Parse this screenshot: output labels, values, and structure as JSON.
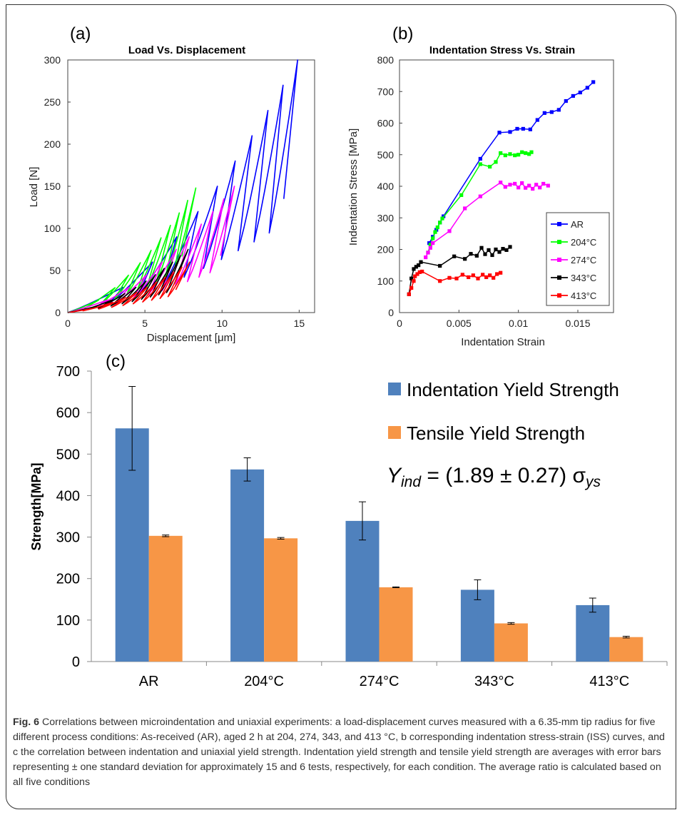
{
  "colors": {
    "blue": "#0000ff",
    "green": "#00ff00",
    "magenta": "#ff00ff",
    "black": "#000000",
    "red": "#ff0000",
    "bar_ind": "#4f81bd",
    "bar_ten": "#f79646"
  },
  "panel_a": {
    "label": "(a)",
    "title": "Load Vs. Displacement",
    "xlabel": "Displacement [μm]",
    "ylabel": "Load [N]",
    "xticks": [
      "0",
      "5",
      "10",
      "15"
    ],
    "yticks": [
      "0",
      "50",
      "100",
      "150",
      "200",
      "250",
      "300"
    ]
  },
  "panel_b": {
    "label": "(b)",
    "title": "Indentation Stress Vs. Strain",
    "xlabel": "Indentation Strain",
    "ylabel": "Indentation Stress [MPa]",
    "xticks": [
      "0",
      "0.005",
      "0.01",
      "0.015"
    ],
    "yticks": [
      "0",
      "100",
      "200",
      "300",
      "400",
      "500",
      "600",
      "700",
      "800"
    ],
    "legend": [
      "AR",
      "204°C",
      "274°C",
      "343°C",
      "413°C"
    ]
  },
  "panel_c": {
    "label": "(c)",
    "ylabel": "Strength[MPa]",
    "yticks": [
      "0",
      "100",
      "200",
      "300",
      "400",
      "500",
      "600",
      "700"
    ],
    "legend_ind": "Indentation Yield Strength",
    "legend_ten": "Tensile Yield Strength",
    "equation": "Y_ind = (1.89 ± 0.27) σ_ys"
  },
  "caption": {
    "lead": "Fig. 6",
    "text": " Correlations between microindentation and uniaxial experiments: a load-displacement curves measured with a 6.35-mm tip radius for five different process conditions: As-received (AR), aged 2 h at 204, 274, 343, and 413 °C, b corresponding indentation stress-strain (ISS) curves, and c the correlation between indentation and uniaxial yield strength. Indentation yield strength and tensile yield strength are averages with error bars representing ± one standard deviation for approximately 15 and 6 tests, respectively, for each condition. The average ratio is calculated based on all five conditions"
  },
  "chart_data": [
    {
      "type": "line",
      "title": "Load Vs. Displacement",
      "xlabel": "Displacement [μm]",
      "ylabel": "Load [N]",
      "xlim": [
        0,
        16
      ],
      "ylim": [
        0,
        300
      ],
      "series": [
        {
          "name": "AR",
          "max_load": 300,
          "max_disp": 14.9,
          "cycles": 10
        },
        {
          "name": "204°C",
          "max_load": 148,
          "max_disp": 8.3,
          "cycles": 10
        },
        {
          "name": "274°C",
          "max_load": 150,
          "max_disp": 10.8,
          "cycles": 10
        },
        {
          "name": "343°C",
          "max_load": 75,
          "max_disp": 7.8,
          "cycles": 10
        },
        {
          "name": "413°C",
          "max_load": 60,
          "max_disp": 7.9,
          "cycles": 10
        }
      ]
    },
    {
      "type": "line",
      "title": "Indentation Stress Vs. Strain",
      "xlabel": "Indentation Strain",
      "ylabel": "Indentation Stress [MPa]",
      "xlim": [
        0,
        0.018
      ],
      "ylim": [
        0,
        800
      ],
      "legend_position": "bottom-right",
      "series": [
        {
          "name": "AR",
          "x": [
            0.0025,
            0.0028,
            0.0031,
            0.0034,
            0.0037,
            0.0068,
            0.0084,
            0.0093,
            0.0099,
            0.0104,
            0.011,
            0.0116,
            0.0122,
            0.0128,
            0.0134,
            0.014,
            0.0146,
            0.0152,
            0.0158,
            0.0163
          ],
          "y": [
            220,
            240,
            262,
            285,
            305,
            487,
            570,
            572,
            582,
            582,
            580,
            610,
            632,
            635,
            642,
            670,
            686,
            697,
            712,
            730
          ]
        },
        {
          "name": "204°C",
          "x": [
            0.0024,
            0.0026,
            0.0028,
            0.003,
            0.0032,
            0.0034,
            0.0036,
            0.0052,
            0.0068,
            0.0076,
            0.0081,
            0.0085,
            0.0089,
            0.0093,
            0.0097,
            0.01,
            0.0103,
            0.0106,
            0.0109,
            0.0111
          ],
          "y": [
            190,
            215,
            235,
            255,
            270,
            285,
            298,
            372,
            470,
            462,
            477,
            505,
            498,
            502,
            498,
            500,
            508,
            505,
            502,
            508
          ]
        },
        {
          "name": "274°C",
          "x": [
            0.0022,
            0.0024,
            0.0026,
            0.0028,
            0.0042,
            0.0055,
            0.0068,
            0.0085,
            0.0089,
            0.0093,
            0.0097,
            0.01,
            0.0103,
            0.0106,
            0.0109,
            0.0112,
            0.0115,
            0.0118,
            0.0121,
            0.0125
          ],
          "y": [
            175,
            190,
            205,
            220,
            258,
            330,
            368,
            412,
            398,
            405,
            408,
            396,
            410,
            395,
            402,
            392,
            405,
            396,
            408,
            402
          ]
        },
        {
          "name": "343°C",
          "x": [
            0.0008,
            0.001,
            0.0012,
            0.0014,
            0.0016,
            0.0018,
            0.0034,
            0.0046,
            0.0055,
            0.006,
            0.0065,
            0.0069,
            0.0072,
            0.0075,
            0.0078,
            0.0081,
            0.0084,
            0.0087,
            0.009,
            0.0093
          ],
          "y": [
            58,
            108,
            138,
            145,
            150,
            160,
            148,
            178,
            170,
            186,
            180,
            205,
            185,
            198,
            182,
            200,
            192,
            202,
            198,
            208
          ]
        },
        {
          "name": "413°C",
          "x": [
            0.0008,
            0.001,
            0.0012,
            0.0013,
            0.0015,
            0.0017,
            0.0019,
            0.0034,
            0.0042,
            0.0048,
            0.0053,
            0.0058,
            0.0062,
            0.0066,
            0.007,
            0.0073,
            0.0076,
            0.0079,
            0.0082,
            0.0085
          ],
          "y": [
            58,
            78,
            100,
            115,
            122,
            128,
            130,
            100,
            110,
            108,
            120,
            112,
            118,
            108,
            120,
            112,
            118,
            110,
            122,
            126
          ]
        }
      ]
    },
    {
      "type": "bar",
      "ylabel": "Strength[MPa]",
      "ylim": [
        0,
        700
      ],
      "categories": [
        "AR",
        "204°C",
        "274°C",
        "343°C",
        "413°C"
      ],
      "series": [
        {
          "name": "Indentation Yield Strength",
          "values": [
            562,
            463,
            339,
            173,
            136
          ],
          "errors": [
            101,
            28,
            46,
            24,
            17
          ]
        },
        {
          "name": "Tensile Yield Strength",
          "values": [
            303,
            297,
            179,
            92,
            59
          ],
          "errors": [
            2,
            2,
            1,
            2,
            2
          ]
        }
      ],
      "annotation": "Y_ind = (1.89 ± 0.27) σ_ys",
      "legend_position": "top-right"
    }
  ]
}
